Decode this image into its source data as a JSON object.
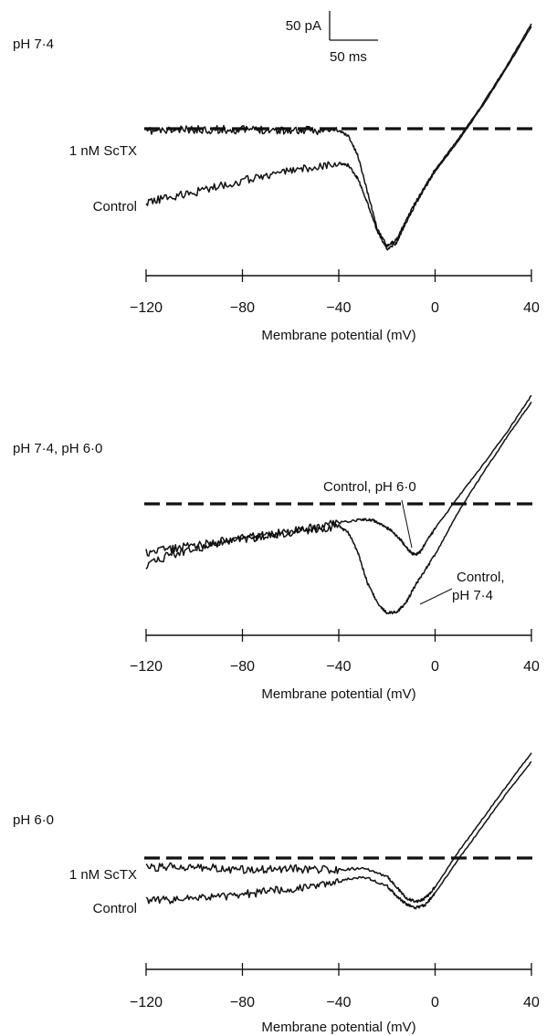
{
  "scale_bar": {
    "current_label": "50 pA",
    "time_label": "50 ms"
  },
  "chart_data": [
    {
      "type": "line",
      "panel_label": "pH 7·4",
      "xlabel": "Membrane potential (mV)",
      "xlim": [
        -120,
        40
      ],
      "xticks": [
        "−120",
        "−80",
        "−40",
        "0",
        "40"
      ],
      "ylim": [
        -200,
        220
      ],
      "zero_line": true,
      "series": [
        {
          "name": "1 nM ScTX",
          "x": [
            -120,
            -110,
            -100,
            -90,
            -80,
            -70,
            -60,
            -50,
            -40,
            -36,
            -32,
            -28,
            -24,
            -20,
            -16,
            -12,
            -8,
            -4,
            0,
            10,
            20,
            30,
            40
          ],
          "y": [
            -3,
            -2,
            -1,
            -1,
            -1,
            -1,
            -2,
            -2,
            -2,
            -8,
            -30,
            -70,
            -110,
            -128,
            -122,
            -100,
            -80,
            -62,
            -45,
            -10,
            28,
            70,
            115
          ]
        },
        {
          "name": "Control",
          "x": [
            -120,
            -110,
            -100,
            -90,
            -80,
            -70,
            -60,
            -50,
            -40,
            -36,
            -32,
            -28,
            -24,
            -20,
            -16,
            -12,
            -8,
            -4,
            0,
            10,
            20,
            30,
            40
          ],
          "y": [
            -80,
            -75,
            -70,
            -63,
            -57,
            -51,
            -46,
            -42,
            -38,
            -40,
            -55,
            -82,
            -112,
            -132,
            -125,
            -103,
            -82,
            -64,
            -47,
            -12,
            26,
            68,
            112
          ]
        }
      ],
      "annotations": [
        {
          "text": "1 nM ScTX",
          "target": "1 nM ScTX"
        },
        {
          "text": "Control",
          "target": "Control"
        }
      ]
    },
    {
      "type": "line",
      "panel_label": "pH 7·4, pH 6·0",
      "xlabel": "Membrane potential (mV)",
      "xlim": [
        -120,
        40
      ],
      "xticks": [
        "−120",
        "−80",
        "−40",
        "0",
        "40"
      ],
      "ylim": [
        -200,
        220
      ],
      "zero_line": true,
      "series": [
        {
          "name": "Control, pH 6·0",
          "x": [
            -120,
            -110,
            -100,
            -90,
            -80,
            -70,
            -60,
            -50,
            -40,
            -30,
            -26,
            -22,
            -18,
            -14,
            -10,
            -8,
            -6,
            -4,
            0,
            10,
            20,
            30,
            40
          ],
          "y": [
            -60,
            -55,
            -50,
            -46,
            -42,
            -38,
            -33,
            -29,
            -23,
            -19,
            -20,
            -25,
            -33,
            -45,
            -60,
            -62,
            -58,
            -48,
            -30,
            10,
            48,
            88,
            132
          ]
        },
        {
          "name": "Control, pH 7·4",
          "x": [
            -120,
            -110,
            -100,
            -90,
            -80,
            -70,
            -60,
            -50,
            -40,
            -36,
            -32,
            -28,
            -24,
            -20,
            -16,
            -12,
            -8,
            -4,
            0,
            10,
            20,
            30,
            40
          ],
          "y": [
            -75,
            -62,
            -55,
            -49,
            -44,
            -39,
            -35,
            -31,
            -27,
            -35,
            -60,
            -97,
            -120,
            -133,
            -132,
            -120,
            -98,
            -80,
            -62,
            -8,
            38,
            82,
            124
          ]
        }
      ],
      "annotations": [
        {
          "text": "Control, pH 6·0",
          "target": "Control, pH 6·0"
        },
        {
          "text": "Control,",
          "text2": "pH 7·4",
          "target": "Control, pH 7·4"
        }
      ]
    },
    {
      "type": "line",
      "panel_label": "pH 6·0",
      "xlabel": "Membrane potential (mV)",
      "xlim": [
        -120,
        40
      ],
      "xticks": [
        "−120",
        "−80",
        "−40",
        "0",
        "40"
      ],
      "ylim": [
        -200,
        220
      ],
      "zero_line": true,
      "series": [
        {
          "name": "1 nM ScTX",
          "x": [
            -120,
            -110,
            -100,
            -90,
            -80,
            -70,
            -60,
            -50,
            -40,
            -30,
            -20,
            -16,
            -12,
            -8,
            -4,
            0,
            10,
            20,
            30,
            40
          ],
          "y": [
            -14,
            -12,
            -12,
            -14,
            -16,
            -15,
            -14,
            -16,
            -16,
            -14,
            -25,
            -40,
            -55,
            -60,
            -55,
            -40,
            10,
            55,
            100,
            144
          ]
        },
        {
          "name": "Control",
          "x": [
            -120,
            -110,
            -100,
            -90,
            -80,
            -70,
            -60,
            -50,
            -40,
            -30,
            -20,
            -16,
            -12,
            -8,
            -4,
            0,
            10,
            20,
            30,
            40
          ],
          "y": [
            -58,
            -57,
            -56,
            -53,
            -50,
            -46,
            -42,
            -38,
            -32,
            -25,
            -38,
            -52,
            -63,
            -68,
            -64,
            -48,
            0,
            45,
            90,
            132
          ]
        }
      ],
      "annotations": [
        {
          "text": "1 nM ScTX",
          "target": "1 nM ScTX"
        },
        {
          "text": "Control",
          "target": "Control"
        }
      ]
    }
  ]
}
